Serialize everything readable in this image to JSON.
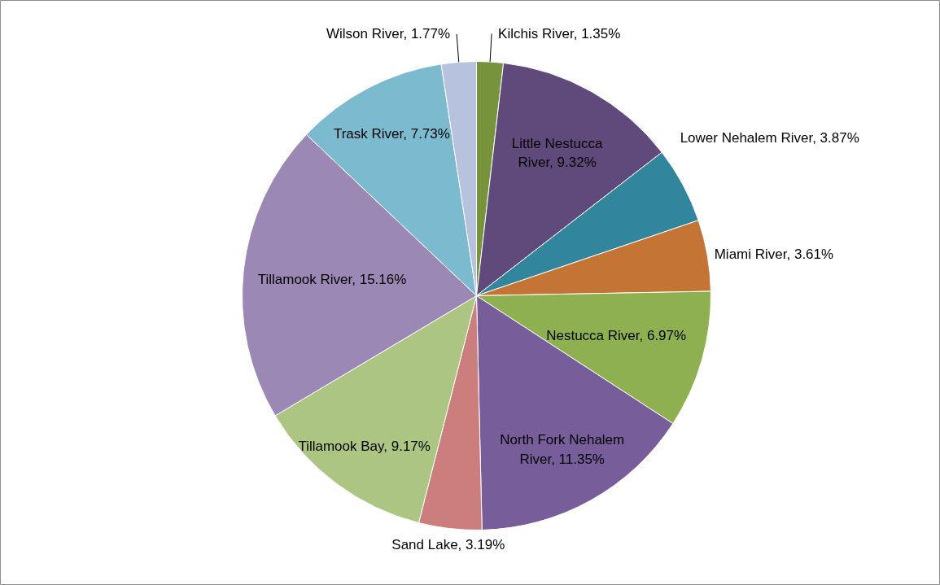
{
  "chart_data": {
    "type": "pie",
    "categories": [
      "Kilchis River",
      "Little Nestucca River",
      "Lower Nehalem River",
      "Miami River",
      "Nestucca River",
      "North Fork Nehalem River",
      "Sand Lake",
      "Tillamook Bay",
      "Tillamook River",
      "Trask River",
      "Wilson River"
    ],
    "values": [
      1.35,
      9.32,
      3.87,
      3.61,
      6.97,
      11.35,
      3.19,
      9.17,
      15.16,
      7.73,
      1.77
    ],
    "colors": [
      "#77933c",
      "#604a7b",
      "#31859c",
      "#c47535",
      "#8eb050",
      "#775d9a",
      "#cb7e7b",
      "#adc583",
      "#9b88b4",
      "#7cbacf",
      "#b7c2df"
    ],
    "value_labels": [
      "1.35%",
      "9.32%",
      "3.87%",
      "3.61%",
      "6.97%",
      "11.35%",
      "3.19%",
      "9.17%",
      "15.16%",
      "7.73%",
      "1.77%"
    ]
  }
}
